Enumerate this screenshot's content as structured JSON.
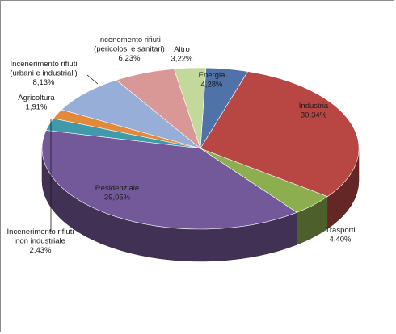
{
  "chart_data": {
    "type": "pie",
    "title": "",
    "legend": "none",
    "unit": "%",
    "slices": [
      {
        "name": "Energia",
        "value": 4.28,
        "label": "4,28%",
        "color": "#4f72a8"
      },
      {
        "name": "Industria",
        "value": 30.34,
        "label": "30,34%",
        "color": "#b84744"
      },
      {
        "name": "Trasporti",
        "value": 4.4,
        "label": "4,40%",
        "color": "#8cae4f"
      },
      {
        "name": "Residenziale",
        "value": 39.05,
        "label": "39,05%",
        "color": "#74599a"
      },
      {
        "name": "Incenerimento rifiuti non industriale",
        "value": 2.43,
        "label": "2,43%",
        "color": "#3f9bac"
      },
      {
        "name": "Agricoltura",
        "value": 1.91,
        "label": "1,91%",
        "color": "#e38a3a"
      },
      {
        "name": "Incenerimento rifiuti (urbani e industriali)",
        "value": 8.13,
        "label": "8,13%",
        "color": "#97aed8"
      },
      {
        "name": "Incenemento rifiuti (pericolosi e sanitari)",
        "value": 6.23,
        "label": "6,23%",
        "color": "#d99896"
      },
      {
        "name": "Altro",
        "value": 3.22,
        "label": "3,22%",
        "color": "#c3d89b"
      }
    ],
    "label_lines": [
      [
        "Energia",
        "4,28%"
      ],
      [
        "Industria",
        "30,34%"
      ],
      [
        "Trasporti",
        "4,40%"
      ],
      [
        "Residenziale",
        "39,05%"
      ],
      [
        "Incenerimento rifiuti",
        "non industriale",
        "2,43%"
      ],
      [
        "Agricoltura",
        "1,91%"
      ],
      [
        "Incenerimento rifiuti",
        "(urbani e industriali)",
        "8,13%"
      ],
      [
        "Incenemento rifiuti",
        "(pericolosi e sanitari)",
        "6,23%"
      ],
      [
        "Altro",
        "3,22%"
      ]
    ]
  }
}
